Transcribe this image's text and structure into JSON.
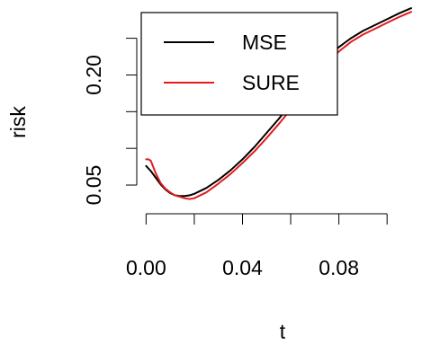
{
  "chart_data": {
    "type": "line",
    "title": "",
    "xlabel": "t",
    "ylabel": "risk",
    "xlim": [
      -0.002,
      0.113
    ],
    "ylim": [
      0.017,
      0.285
    ],
    "xticks": [
      0.0,
      0.02,
      0.04,
      0.06,
      0.08,
      0.1
    ],
    "xtick_labels": [
      "0.00",
      "",
      "0.04",
      "",
      "0.08",
      ""
    ],
    "yticks": [
      0.05,
      0.1,
      0.15,
      0.2,
      0.25
    ],
    "ytick_labels": [
      "0.05",
      "",
      "",
      "0.20",
      ""
    ],
    "grid": false,
    "legend_position": "top-left",
    "series": [
      {
        "name": "MSE",
        "color": "#000000",
        "x": [
          0.0,
          0.002,
          0.004,
          0.006,
          0.008,
          0.01,
          0.012,
          0.014,
          0.016,
          0.018,
          0.02,
          0.025,
          0.03,
          0.035,
          0.04,
          0.045,
          0.05,
          0.055,
          0.06,
          0.065,
          0.07,
          0.075,
          0.08,
          0.085,
          0.09,
          0.095,
          0.1,
          0.105,
          0.11
        ],
        "y": [
          0.076,
          0.069,
          0.06,
          0.051,
          0.044,
          0.039,
          0.036,
          0.035,
          0.035,
          0.036,
          0.038,
          0.046,
          0.057,
          0.07,
          0.085,
          0.102,
          0.121,
          0.14,
          0.161,
          0.182,
          0.203,
          0.222,
          0.238,
          0.25,
          0.26,
          0.268,
          0.276,
          0.284,
          0.291
        ]
      },
      {
        "name": "SURE",
        "color": "#e41a1c",
        "x": [
          0.0,
          0.001,
          0.002,
          0.004,
          0.006,
          0.008,
          0.01,
          0.012,
          0.014,
          0.016,
          0.018,
          0.02,
          0.025,
          0.03,
          0.035,
          0.04,
          0.045,
          0.05,
          0.055,
          0.06,
          0.065,
          0.07,
          0.075,
          0.08,
          0.085,
          0.09,
          0.095,
          0.1,
          0.105,
          0.11
        ],
        "y": [
          0.085,
          0.085,
          0.083,
          0.066,
          0.053,
          0.045,
          0.04,
          0.036,
          0.034,
          0.032,
          0.031,
          0.032,
          0.04,
          0.052,
          0.065,
          0.08,
          0.096,
          0.114,
          0.133,
          0.153,
          0.174,
          0.195,
          0.215,
          0.232,
          0.245,
          0.255,
          0.263,
          0.271,
          0.279,
          0.286
        ]
      }
    ]
  }
}
